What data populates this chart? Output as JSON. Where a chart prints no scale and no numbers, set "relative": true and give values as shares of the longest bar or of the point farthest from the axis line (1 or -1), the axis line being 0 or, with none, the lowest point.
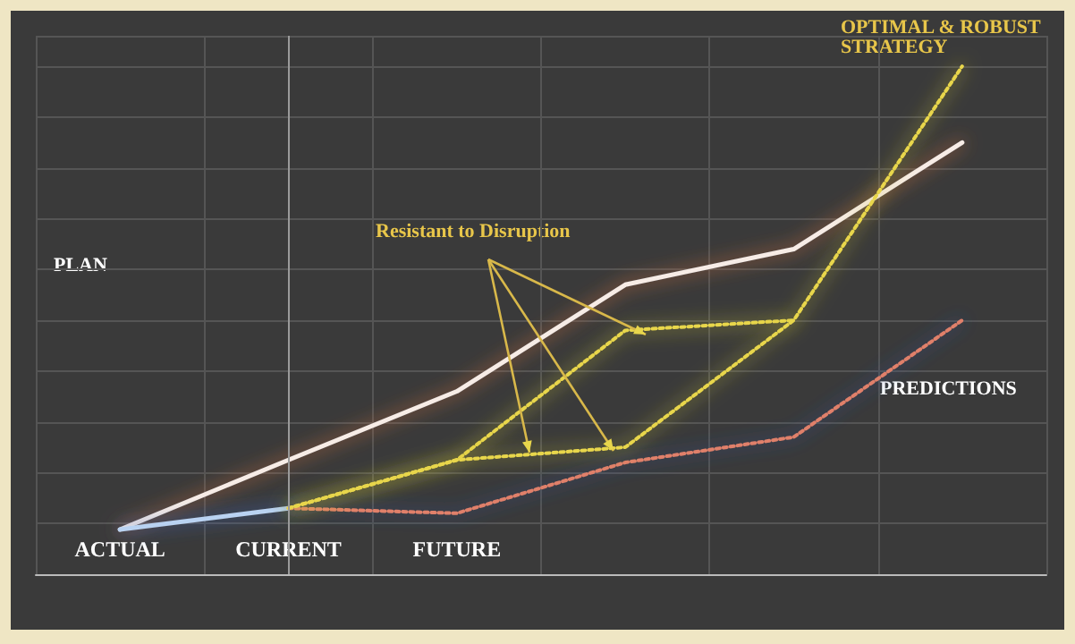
{
  "chart_data": {
    "type": "line",
    "relative": true,
    "categories": [
      "ACTUAL",
      "CURRENT",
      "FUTURE",
      null,
      null,
      null
    ],
    "series": [
      {
        "color": "#f7ece6",
        "line_style": "solid",
        "values": [
          0.088,
          0.225,
          0.36,
          0.57,
          0.64,
          0.85
        ]
      },
      {
        "color": "#b9d2f2",
        "line_style": "solid",
        "values": [
          0.088,
          0.13,
          null,
          null,
          null,
          null
        ]
      },
      {
        "color": "#e0806a",
        "line_style": "dotted",
        "values": [
          null,
          0.13,
          0.12,
          0.22,
          0.27,
          0.5
        ]
      },
      {
        "color": "#e8d64c",
        "line_style": "dotted",
        "values": [
          null,
          0.13,
          0.225,
          0.48,
          0.5,
          null
        ]
      },
      {
        "color": "#e8d64c",
        "line_style": "dotted",
        "values": [
          null,
          0.13,
          0.225,
          0.25,
          0.5,
          1.0
        ]
      }
    ],
    "ref_lines": [
      {
        "axis": "x",
        "value": "CURRENT",
        "color": "#9a9a9a",
        "line_style": "solid"
      }
    ],
    "annotations": [
      "PLAN",
      "Resistant to Disruption",
      "PREDICTIONS",
      "OPTIMAL & ROBUST STRATEGY"
    ],
    "grid": true,
    "marker": "none"
  }
}
